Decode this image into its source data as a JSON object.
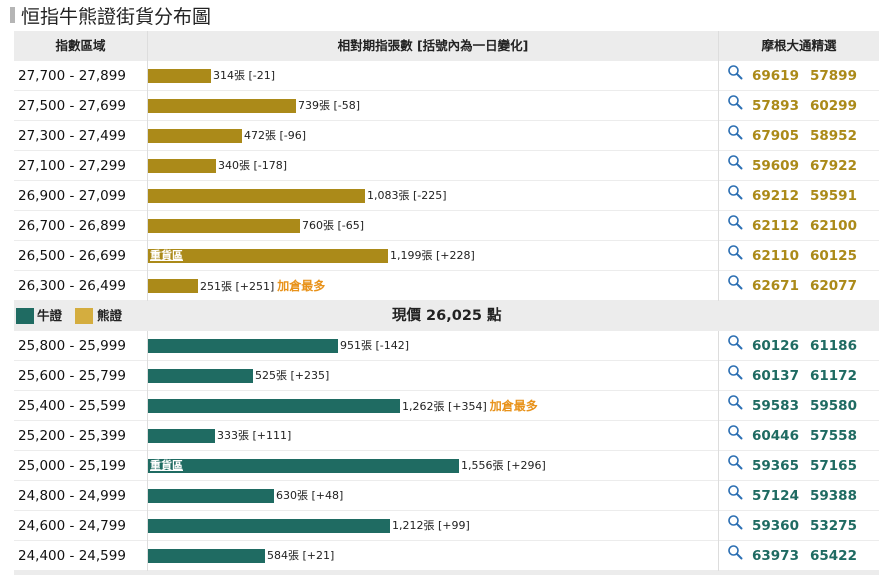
{
  "title": "恒指牛熊證街貨分布圖",
  "header": {
    "col_range": "指數區域",
    "col_contracts": "相對期指張數 [括號內為一日變化]",
    "col_picks": "摩根大通精選"
  },
  "colors": {
    "bull": "#1f6b62",
    "bear": "#ab8a19",
    "note": "#e8921a"
  },
  "icons": {
    "search": "search-icon"
  },
  "legend": {
    "bull": "牛證",
    "bear": "熊證"
  },
  "current_price": "現價 26,025 點",
  "chart_data": {
    "type": "bar",
    "orientation": "horizontal",
    "xlim": [
      0,
      1600
    ],
    "bear_rows": [
      {
        "range": "27,700 - 27,899",
        "value": 314,
        "label": "314張 [-21]",
        "tag": "",
        "note": "",
        "codes": [
          "69619",
          "57899"
        ]
      },
      {
        "range": "27,500 - 27,699",
        "value": 739,
        "label": "739張 [-58]",
        "tag": "",
        "note": "",
        "codes": [
          "57893",
          "60299"
        ]
      },
      {
        "range": "27,300 - 27,499",
        "value": 472,
        "label": "472張 [-96]",
        "tag": "",
        "note": "",
        "codes": [
          "67905",
          "58952"
        ]
      },
      {
        "range": "27,100 - 27,299",
        "value": 340,
        "label": "340張 [-178]",
        "tag": "",
        "note": "",
        "codes": [
          "59609",
          "67922"
        ]
      },
      {
        "range": "26,900 - 27,099",
        "value": 1083,
        "label": "1,083張 [-225]",
        "tag": "",
        "note": "",
        "codes": [
          "69212",
          "59591"
        ]
      },
      {
        "range": "26,700 - 26,899",
        "value": 760,
        "label": "760張 [-65]",
        "tag": "",
        "note": "",
        "codes": [
          "62112",
          "62100"
        ]
      },
      {
        "range": "26,500 - 26,699",
        "value": 1199,
        "label": "1,199張 [+228]",
        "tag": "重貨區",
        "note": "",
        "codes": [
          "62110",
          "60125"
        ]
      },
      {
        "range": "26,300 - 26,499",
        "value": 251,
        "label": "251張 [+251]",
        "tag": "",
        "note": "加倉最多",
        "codes": [
          "62671",
          "62077"
        ]
      }
    ],
    "bull_rows": [
      {
        "range": "25,800 - 25,999",
        "value": 951,
        "label": "951張 [-142]",
        "tag": "",
        "note": "",
        "codes": [
          "60126",
          "61186"
        ]
      },
      {
        "range": "25,600 - 25,799",
        "value": 525,
        "label": "525張 [+235]",
        "tag": "",
        "note": "",
        "codes": [
          "60137",
          "61172"
        ]
      },
      {
        "range": "25,400 - 25,599",
        "value": 1262,
        "label": "1,262張 [+354]",
        "tag": "",
        "note": "加倉最多",
        "codes": [
          "59583",
          "59580"
        ]
      },
      {
        "range": "25,200 - 25,399",
        "value": 333,
        "label": "333張 [+111]",
        "tag": "",
        "note": "",
        "codes": [
          "60446",
          "57558"
        ]
      },
      {
        "range": "25,000 - 25,199",
        "value": 1556,
        "label": "1,556張 [+296]",
        "tag": "重貨區",
        "note": "",
        "codes": [
          "59365",
          "57165"
        ]
      },
      {
        "range": "24,800 - 24,999",
        "value": 630,
        "label": "630張 [+48]",
        "tag": "",
        "note": "",
        "codes": [
          "57124",
          "59388"
        ]
      },
      {
        "range": "24,600 - 24,799",
        "value": 1212,
        "label": "1,212張 [+99]",
        "tag": "",
        "note": "",
        "codes": [
          "59360",
          "53275"
        ]
      },
      {
        "range": "24,400 - 24,599",
        "value": 584,
        "label": "584張 [+21]",
        "tag": "",
        "note": "",
        "codes": [
          "63973",
          "65422"
        ]
      }
    ]
  }
}
